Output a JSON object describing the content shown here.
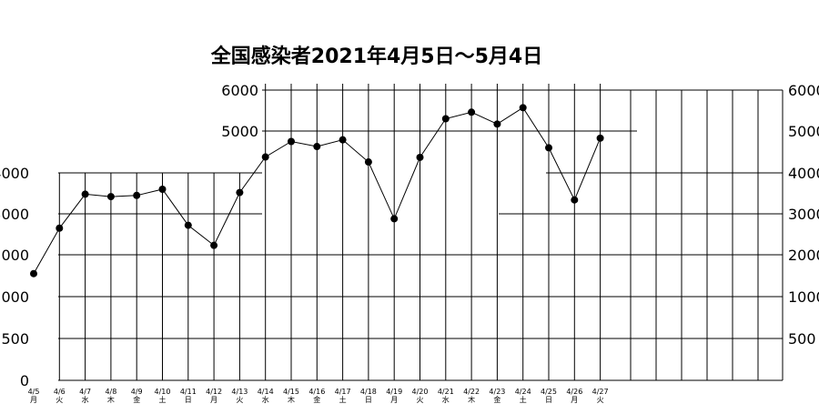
{
  "chart_data": {
    "type": "line",
    "title": "全国感染者2021年4月5日～5月4日",
    "x": [
      {
        "date": "4/5",
        "day": "月"
      },
      {
        "date": "4/6",
        "day": "火"
      },
      {
        "date": "4/7",
        "day": "水"
      },
      {
        "date": "4/8",
        "day": "木"
      },
      {
        "date": "4/9",
        "day": "金"
      },
      {
        "date": "4/10",
        "day": "土"
      },
      {
        "date": "4/11",
        "day": "日"
      },
      {
        "date": "4/12",
        "day": "月"
      },
      {
        "date": "4/13",
        "day": "火"
      },
      {
        "date": "4/14",
        "day": "水"
      },
      {
        "date": "4/15",
        "day": "木"
      },
      {
        "date": "4/16",
        "day": "金"
      },
      {
        "date": "4/17",
        "day": "土"
      },
      {
        "date": "4/18",
        "day": "日"
      },
      {
        "date": "4/19",
        "day": "月"
      },
      {
        "date": "4/20",
        "day": "火"
      },
      {
        "date": "4/21",
        "day": "水"
      },
      {
        "date": "4/22",
        "day": "木"
      },
      {
        "date": "4/23",
        "day": "金"
      },
      {
        "date": "4/24",
        "day": "土"
      },
      {
        "date": "4/25",
        "day": "日"
      },
      {
        "date": "4/26",
        "day": "月"
      },
      {
        "date": "4/27",
        "day": "火"
      }
    ],
    "values": [
      1550,
      2650,
      3480,
      3420,
      3450,
      3600,
      2720,
      2230,
      3520,
      4380,
      4750,
      4630,
      4790,
      4260,
      2880,
      4370,
      5300,
      5460,
      5170,
      5570,
      4600,
      3340,
      4830
    ],
    "y_ticks": [
      {
        "label": "0",
        "value": 0
      },
      {
        "label": "500",
        "value": 500
      },
      {
        "label": "1000",
        "value": 1000
      },
      {
        "label": "2000",
        "value": 2000
      },
      {
        "label": "3000",
        "value": 3000
      },
      {
        "label": "4000",
        "value": 4000
      },
      {
        "label": "5000",
        "value": 5000
      },
      {
        "label": "6000",
        "value": 6000
      }
    ],
    "ylim": [
      0,
      6000
    ],
    "y_axis_note": "non-linear tick spacing",
    "grid": true,
    "legend": "none"
  }
}
